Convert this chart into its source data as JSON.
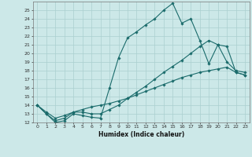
{
  "xlabel": "Humidex (Indice chaleur)",
  "xlim": [
    -0.5,
    23.5
  ],
  "ylim": [
    12,
    26
  ],
  "yticks": [
    12,
    13,
    14,
    15,
    16,
    17,
    18,
    19,
    20,
    21,
    22,
    23,
    24,
    25
  ],
  "xticks": [
    0,
    1,
    2,
    3,
    4,
    5,
    6,
    7,
    8,
    9,
    10,
    11,
    12,
    13,
    14,
    15,
    16,
    17,
    18,
    19,
    20,
    21,
    22,
    23
  ],
  "bg_color": "#cce8e8",
  "grid_color": "#aacfcf",
  "line_color": "#1a6b6b",
  "line1_x": [
    0,
    1,
    2,
    3,
    4,
    5,
    6,
    7,
    8,
    9,
    10,
    11,
    12,
    13,
    14,
    15,
    16,
    17,
    18,
    19,
    20,
    21,
    22,
    23
  ],
  "line1_y": [
    14.0,
    13.0,
    12.0,
    12.2,
    13.0,
    12.8,
    12.6,
    12.5,
    16.0,
    19.5,
    21.8,
    22.5,
    23.3,
    24.0,
    25.0,
    25.8,
    23.5,
    24.0,
    21.5,
    18.8,
    21.0,
    19.0,
    18.0,
    17.8
  ],
  "line2_x": [
    0,
    1,
    2,
    3,
    4,
    5,
    6,
    7,
    8,
    9,
    10,
    11,
    12,
    13,
    14,
    15,
    16,
    17,
    18,
    19,
    20,
    21,
    22,
    23
  ],
  "line2_y": [
    14.0,
    13.0,
    12.2,
    12.5,
    13.2,
    13.2,
    13.0,
    13.0,
    13.5,
    14.0,
    14.8,
    15.5,
    16.2,
    17.0,
    17.8,
    18.5,
    19.2,
    20.0,
    20.8,
    21.5,
    21.0,
    20.8,
    17.8,
    17.5
  ],
  "line3_x": [
    0,
    1,
    2,
    3,
    4,
    5,
    6,
    7,
    8,
    9,
    10,
    11,
    12,
    13,
    14,
    15,
    16,
    17,
    18,
    19,
    20,
    21,
    22,
    23
  ],
  "line3_y": [
    14.0,
    13.2,
    12.5,
    12.8,
    13.2,
    13.5,
    13.8,
    14.0,
    14.2,
    14.5,
    14.8,
    15.2,
    15.6,
    16.0,
    16.4,
    16.8,
    17.2,
    17.5,
    17.8,
    18.0,
    18.2,
    18.4,
    17.8,
    17.5
  ]
}
